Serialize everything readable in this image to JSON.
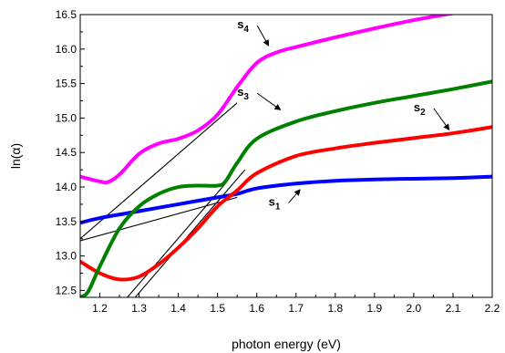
{
  "chart_data": {
    "type": "line",
    "xlabel": "photon energy (eV)",
    "ylabel": "ln(α)",
    "xlim": [
      1.15,
      2.2
    ],
    "ylim": [
      12.4,
      16.5
    ],
    "xticks": [
      1.2,
      1.3,
      1.4,
      1.5,
      1.6,
      1.7,
      1.8,
      1.9,
      2.0,
      2.1,
      2.2
    ],
    "yticks": [
      12.5,
      13.0,
      13.5,
      14.0,
      14.5,
      15.0,
      15.5,
      16.0,
      16.5
    ],
    "series": [
      {
        "name": "s1",
        "color": "#0000ff",
        "x": [
          1.15,
          1.2,
          1.3,
          1.4,
          1.5,
          1.55,
          1.6,
          1.7,
          1.8,
          1.9,
          2.0,
          2.1,
          2.2
        ],
        "y": [
          13.48,
          13.55,
          13.65,
          13.75,
          13.85,
          13.9,
          13.98,
          14.05,
          14.09,
          14.11,
          14.12,
          14.13,
          14.15
        ]
      },
      {
        "name": "s2",
        "color": "#ff0000",
        "x": [
          1.15,
          1.2,
          1.25,
          1.3,
          1.35,
          1.4,
          1.45,
          1.5,
          1.55,
          1.6,
          1.7,
          1.8,
          1.9,
          2.0,
          2.1,
          2.2
        ],
        "y": [
          12.92,
          12.75,
          12.66,
          12.7,
          12.88,
          13.12,
          13.4,
          13.72,
          13.95,
          14.2,
          14.45,
          14.56,
          14.64,
          14.71,
          14.78,
          14.87
        ]
      },
      {
        "name": "s3",
        "color": "#008000",
        "x": [
          1.15,
          1.17,
          1.2,
          1.25,
          1.3,
          1.35,
          1.4,
          1.45,
          1.5,
          1.52,
          1.55,
          1.6,
          1.7,
          1.8,
          1.9,
          2.0,
          2.1,
          2.2
        ],
        "y": [
          12.4,
          12.48,
          12.85,
          13.4,
          13.72,
          13.9,
          14.0,
          14.02,
          14.02,
          14.08,
          14.35,
          14.7,
          14.95,
          15.1,
          15.22,
          15.32,
          15.42,
          15.53
        ]
      },
      {
        "name": "s4",
        "color": "#ff00ff",
        "x": [
          1.15,
          1.2,
          1.22,
          1.25,
          1.3,
          1.35,
          1.4,
          1.45,
          1.5,
          1.55,
          1.6,
          1.65,
          1.7,
          1.8,
          1.9,
          2.0,
          2.1
        ],
        "y": [
          14.15,
          14.08,
          14.07,
          14.18,
          14.48,
          14.63,
          14.7,
          14.82,
          15.05,
          15.45,
          15.8,
          15.95,
          16.03,
          16.17,
          16.3,
          16.42,
          16.52
        ]
      }
    ],
    "tangent_lines": [
      {
        "x": [
          1.15,
          1.55
        ],
        "y": [
          13.25,
          15.22
        ]
      },
      {
        "x": [
          1.15,
          1.55
        ],
        "y": [
          13.22,
          13.85
        ]
      },
      {
        "x": [
          1.27,
          1.52
        ],
        "y": [
          12.4,
          14.05
        ]
      },
      {
        "x": [
          1.29,
          1.57
        ],
        "y": [
          12.4,
          14.25
        ]
      }
    ],
    "annotations": [
      {
        "label": "s",
        "sub": "4",
        "x": 1.55,
        "y": 16.3,
        "arrow_to": [
          1.63,
          16.05
        ]
      },
      {
        "label": "s",
        "sub": "3",
        "x": 1.55,
        "y": 15.32,
        "arrow_to": [
          1.66,
          15.12
        ]
      },
      {
        "label": "s",
        "sub": "2",
        "x": 2.0,
        "y": 15.1,
        "arrow_to": [
          2.09,
          14.83
        ]
      },
      {
        "label": "s",
        "sub": "1",
        "x": 1.63,
        "y": 13.73,
        "arrow_to": [
          1.71,
          13.96
        ]
      }
    ]
  }
}
